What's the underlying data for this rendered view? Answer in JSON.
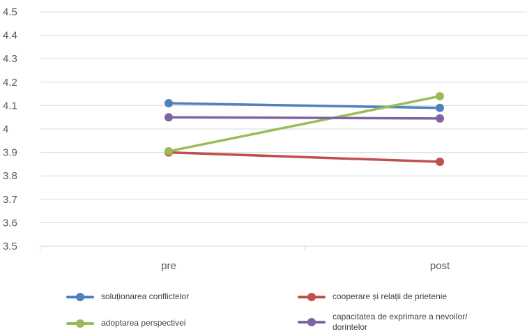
{
  "chart_data": {
    "type": "line",
    "categories": [
      "pre",
      "post"
    ],
    "ylim": [
      3.5,
      4.5
    ],
    "yticks": [
      "4.5",
      "4.4",
      "4.3",
      "4.2",
      "4.1",
      "4",
      "3.9",
      "3.8",
      "3.7",
      "3.6",
      "3.5"
    ],
    "grid": true,
    "legend_position": "bottom",
    "series": [
      {
        "name": "soluționarea conflictelor",
        "values": [
          4.11,
          4.09
        ],
        "color": "#4f81bd"
      },
      {
        "name": "cooperare și relații de prietenie",
        "values": [
          3.9,
          3.86
        ],
        "color": "#c0504d"
      },
      {
        "name": "adoptarea perspectivei",
        "values": [
          3.905,
          4.14
        ],
        "color": "#9bbb59"
      },
      {
        "name": "capacitatea de exprimare a nevoilor/ dorintelor",
        "values": [
          4.05,
          4.045
        ],
        "color": "#8064a2"
      }
    ]
  }
}
